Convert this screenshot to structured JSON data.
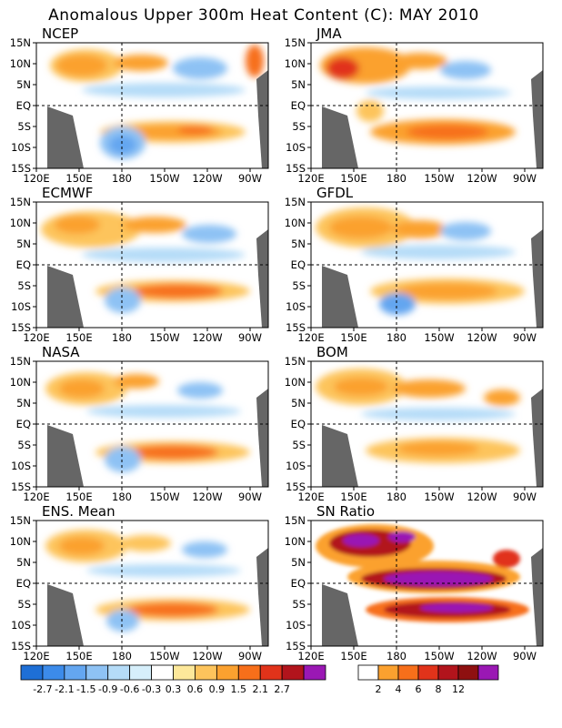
{
  "title": "Anomalous Upper 300m Heat Content (C): MAY 2010",
  "lat_labels": [
    "15N",
    "10N",
    "5N",
    "EQ",
    "5S",
    "10S",
    "15S"
  ],
  "lon_labels": [
    "120E",
    "150E",
    "180",
    "150W",
    "120W",
    "90W"
  ],
  "panels": [
    {
      "name": "NCEP"
    },
    {
      "name": "JMA"
    },
    {
      "name": "ECMWF"
    },
    {
      "name": "GFDL"
    },
    {
      "name": "NASA"
    },
    {
      "name": "BOM"
    },
    {
      "name": "ENS. Mean"
    },
    {
      "name": "SN Ratio"
    }
  ],
  "colorbar_anomaly": {
    "colors": [
      "#1e6fd6",
      "#3c8bea",
      "#64a6f0",
      "#8ec2f4",
      "#b5dcf8",
      "#d6effb",
      "#ffffff",
      "#fde89a",
      "#fdc45c",
      "#fba12f",
      "#f76f1a",
      "#e1331a",
      "#b2141c",
      "#9a18b4"
    ],
    "labels": [
      "-2.7",
      "-2.1",
      "-1.5",
      "-0.9",
      "-0.6",
      "-0.3",
      "0.3",
      "0.6",
      "0.9",
      "1.5",
      "2.1",
      "2.7"
    ]
  },
  "colorbar_sn": {
    "colors": [
      "#ffffff",
      "#fba12f",
      "#f76f1a",
      "#e1331a",
      "#b2141c",
      "#8e1010",
      "#9a18b4"
    ],
    "labels": [
      "2",
      "4",
      "6",
      "8",
      "12"
    ]
  }
}
